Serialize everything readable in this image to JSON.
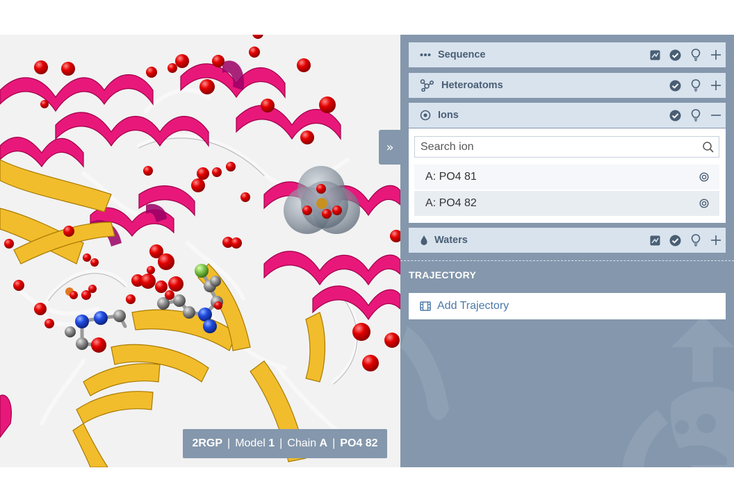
{
  "viewer": {
    "structure_id": "2RGP",
    "model_label": "Model",
    "model_value": "1",
    "chain_label": "Chain",
    "chain_value": "A",
    "residue": "PO4 82",
    "separator": "|",
    "collapse_glyph": "»"
  },
  "sections": {
    "sequence": {
      "label": "Sequence",
      "icon": "ellipsis-icon"
    },
    "heteroatoms": {
      "label": "Heteroatoms",
      "icon": "molecule-icon"
    },
    "ions": {
      "label": "Ions",
      "icon": "target-icon",
      "search_placeholder": "Search ion",
      "items": [
        {
          "label": "A: PO4 81"
        },
        {
          "label": "A: PO4 82"
        }
      ]
    },
    "waters": {
      "label": "Waters",
      "icon": "drop-icon"
    }
  },
  "trajectory": {
    "title": "TRAJECTORY",
    "add_label": "Add Trajectory",
    "icon": "film-icon"
  },
  "colors": {
    "panel_bg": "#8497ac",
    "header_bg": "#d8e3ee",
    "header_text": "#4a5e74",
    "helix": "#e8187a",
    "sheet": "#f2bd2c",
    "coil": "#ffffff",
    "oxygen": "#e30000",
    "nitrogen": "#1f4ae0",
    "carbon": "#8c8c8c"
  }
}
